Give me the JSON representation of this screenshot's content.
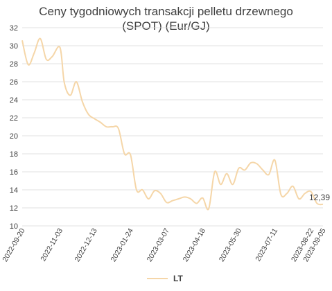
{
  "chart_data": {
    "type": "line",
    "title": "Ceny tygodniowych transakcji pelletu drzewnego",
    "subtitle": "(SPOT) (Eur/GJ)",
    "xlabel": "",
    "ylabel": "",
    "ylim": [
      10,
      32
    ],
    "yticks": [
      "10",
      "12",
      "14",
      "16",
      "18",
      "20",
      "22",
      "24",
      "26",
      "28",
      "30",
      "32"
    ],
    "grid": true,
    "legend_position": "bottom",
    "x_tick_labels": [
      "2022-09-20",
      "2022-11-03",
      "2022-12-13",
      "2023-01-24",
      "2023-03-07",
      "2023-04-18",
      "2023-05-30",
      "2023-07-11",
      "2023-08-22",
      "2023-09-05"
    ],
    "series": [
      {
        "name": "LT",
        "color": "#f5d6a8",
        "x": [
          "2022-09-20",
          "2022-09-27",
          "2022-10-04",
          "2022-10-11",
          "2022-10-18",
          "2022-10-25",
          "2022-11-03",
          "2022-11-08",
          "2022-11-15",
          "2022-11-22",
          "2022-11-29",
          "2022-12-06",
          "2022-12-13",
          "2022-12-20",
          "2022-12-27",
          "2023-01-03",
          "2023-01-10",
          "2023-01-17",
          "2023-01-24",
          "2023-01-31",
          "2023-02-07",
          "2023-02-14",
          "2023-02-21",
          "2023-02-28",
          "2023-03-07",
          "2023-03-14",
          "2023-03-21",
          "2023-03-28",
          "2023-04-04",
          "2023-04-11",
          "2023-04-18",
          "2023-04-25",
          "2023-05-02",
          "2023-05-09",
          "2023-05-16",
          "2023-05-23",
          "2023-05-30",
          "2023-06-06",
          "2023-06-13",
          "2023-06-20",
          "2023-06-27",
          "2023-07-04",
          "2023-07-11",
          "2023-07-18",
          "2023-07-25",
          "2023-08-01",
          "2023-08-08",
          "2023-08-15",
          "2023-08-22",
          "2023-08-29",
          "2023-09-05"
        ],
        "values": [
          30.6,
          27.9,
          29.2,
          30.8,
          28.5,
          28.8,
          29.8,
          25.9,
          24.5,
          26.0,
          23.8,
          22.4,
          21.9,
          21.5,
          21.0,
          21.0,
          20.8,
          18.0,
          17.9,
          14.0,
          14.0,
          13.0,
          13.9,
          13.6,
          12.6,
          12.8,
          13.0,
          13.2,
          13.0,
          12.5,
          13.1,
          11.9,
          16.0,
          14.6,
          15.8,
          14.6,
          16.4,
          16.2,
          17.0,
          16.9,
          16.2,
          15.7,
          17.3,
          13.5,
          13.6,
          14.4,
          13.0,
          13.6,
          13.8,
          12.5,
          12.39
        ]
      }
    ],
    "annotations": [
      {
        "text": "12,39",
        "series": "LT",
        "x": "2023-09-05",
        "y": 12.39
      }
    ]
  }
}
